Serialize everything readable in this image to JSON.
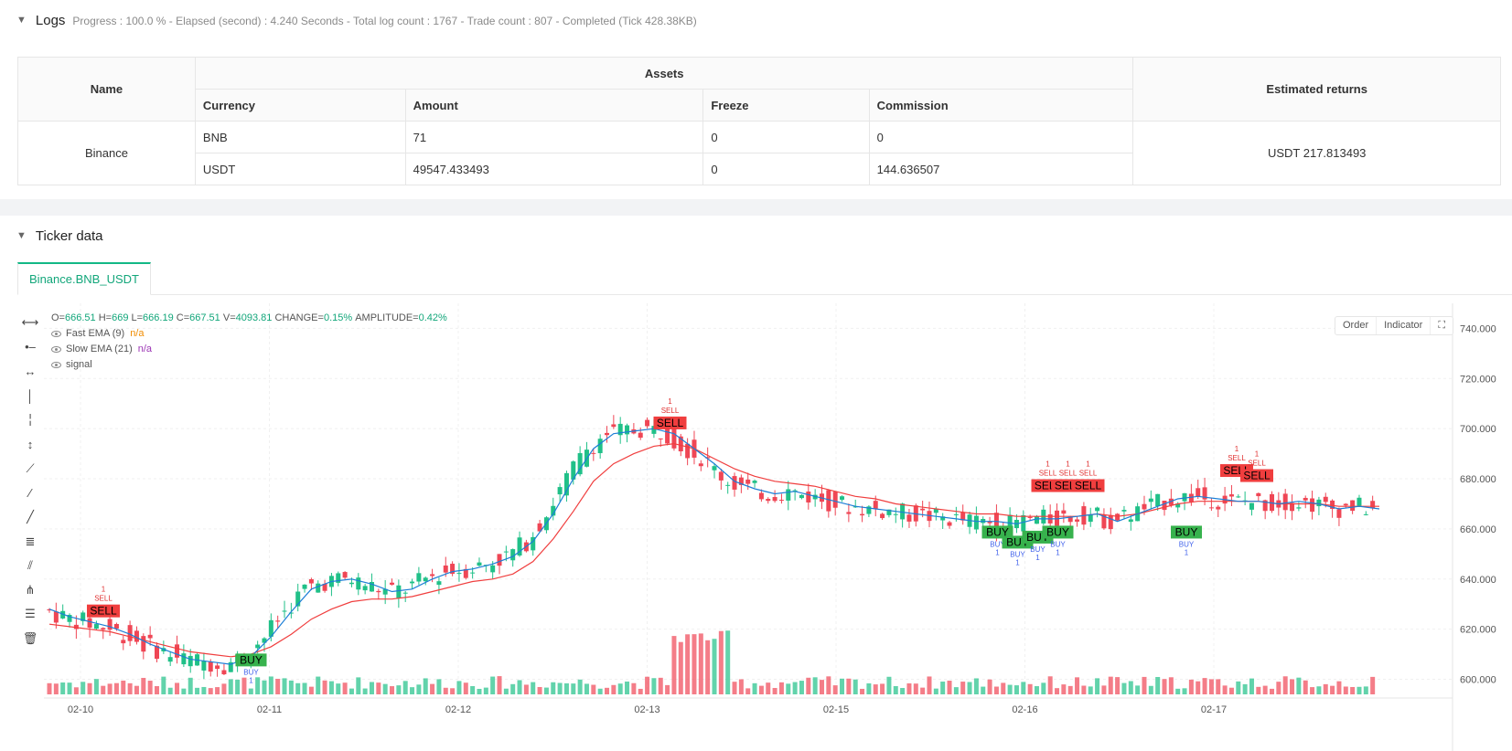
{
  "logs": {
    "title": "Logs",
    "status": "Progress : 100.0 % - Elapsed (second) : 4.240  Seconds - Total log count : 1767 - Trade count : 807 - Completed (Tick 428.38KB)",
    "table": {
      "h_name": "Name",
      "h_assets": "Assets",
      "h_returns": "Estimated returns",
      "h_currency": "Currency",
      "h_amount": "Amount",
      "h_freeze": "Freeze",
      "h_commission": "Commission",
      "exchange": "Binance",
      "rows": [
        {
          "currency": "BNB",
          "amount": "71",
          "freeze": "0",
          "commission": "0"
        },
        {
          "currency": "USDT",
          "amount": "49547.433493",
          "freeze": "0",
          "commission": "144.636507"
        }
      ],
      "returns": "USDT 217.813493"
    }
  },
  "ticker": {
    "title": "Ticker data",
    "tab": "Binance.BNB_USDT",
    "buttons": {
      "order": "Order",
      "indicator": "Indicator"
    },
    "ohlc": {
      "o_label": "O=",
      "o": "666.51",
      "h_label": "H=",
      "h": "669",
      "l_label": "L=",
      "l": "666.19",
      "c_label": "C=",
      "c": "667.51",
      "v_label": "V=",
      "v": "4093.81",
      "change_label": "CHANGE=",
      "change": "0.15%",
      "amp_label": "AMPLITUDE=",
      "amp": "0.42%"
    },
    "indicators": [
      {
        "name": "Fast EMA (9)",
        "value": "n/a"
      },
      {
        "name": "Slow EMA (21)",
        "value": "n/a"
      },
      {
        "name": "signal",
        "value": ""
      }
    ],
    "tools": [
      "h-line-icon",
      "h-ray-icon",
      "h-segment-icon",
      "v-line-icon",
      "v-ray-icon",
      "v-segment-icon",
      "trend-line-icon",
      "trend-ray-icon",
      "trend-segment-icon",
      "price-range-icon",
      "parallel-channel-icon",
      "pitchfork-icon",
      "fib-icon",
      "trash-icon"
    ]
  },
  "chart_data": {
    "type": "candlestick",
    "y_ticks": [
      "600.000",
      "620.000",
      "640.000",
      "660.000",
      "680.000",
      "700.000",
      "720.000",
      "740.000"
    ],
    "ylim": [
      594,
      750
    ],
    "x_labels": [
      "02-10",
      "02-11",
      "02-12",
      "02-13",
      "02-15",
      "02-16",
      "02-17"
    ],
    "fast_ema_color": "#1c7ed6",
    "slow_ema_color": "#f03e3e",
    "up_color": "#20c088",
    "down_color": "#ef4655",
    "fast_ema": [
      628,
      625,
      623,
      621,
      618,
      614,
      611,
      608,
      607,
      606,
      609,
      617,
      627,
      636,
      639,
      640,
      638,
      635,
      636,
      640,
      643,
      644,
      646,
      649,
      655,
      666,
      680,
      692,
      698,
      699,
      700,
      698,
      692,
      686,
      679,
      676,
      674,
      675,
      673,
      671,
      669,
      668,
      667,
      666,
      665,
      664,
      663,
      663,
      662,
      664,
      664,
      665,
      666,
      663,
      666,
      669,
      672,
      673,
      672,
      671,
      671,
      670,
      671,
      670,
      668,
      669,
      668
    ],
    "slow_ema": [
      622,
      621,
      620,
      619,
      617,
      615,
      613,
      611,
      610,
      609,
      610,
      613,
      618,
      624,
      628,
      631,
      632,
      632,
      633,
      635,
      637,
      639,
      640,
      642,
      647,
      656,
      667,
      679,
      686,
      690,
      693,
      694,
      692,
      688,
      684,
      681,
      679,
      678,
      677,
      675,
      673,
      672,
      670,
      669,
      668,
      667,
      666,
      666,
      665,
      665,
      665,
      665,
      666,
      665,
      666,
      668,
      670,
      671,
      671,
      671,
      671,
      670,
      670,
      670,
      669,
      669,
      669
    ],
    "signals": [
      {
        "type": "SELL",
        "date": "02-10",
        "price": 624,
        "label": "SELL",
        "qty": "1"
      },
      {
        "type": "BUY",
        "date": "02-11",
        "price": 611,
        "label": "BUY",
        "qty": "1"
      },
      {
        "type": "SELL",
        "date": "02-13",
        "price": 699,
        "label": "SELL",
        "qty": "1"
      },
      {
        "type": "SELL",
        "date": "02-16",
        "price": 674,
        "label": "SELL",
        "qty": "1"
      },
      {
        "type": "SELL",
        "date": "02-16",
        "price": 674,
        "label": "SELL",
        "qty": "1"
      },
      {
        "type": "SELL",
        "date": "02-16",
        "price": 674,
        "label": "SELL",
        "qty": "1"
      },
      {
        "type": "BUY",
        "date": "02-16",
        "price": 662,
        "label": "BUY",
        "qty": "1"
      },
      {
        "type": "BUY",
        "date": "02-16",
        "price": 658,
        "label": "BUY",
        "qty": "1"
      },
      {
        "type": "BUY",
        "date": "02-16",
        "price": 660,
        "label": "BUY",
        "qty": "1"
      },
      {
        "type": "BUY",
        "date": "02-16",
        "price": 662,
        "label": "BUY",
        "qty": "1"
      },
      {
        "type": "SELL",
        "date": "02-17",
        "price": 680,
        "label": "SELL",
        "qty": "1"
      },
      {
        "type": "BUY",
        "date": "02-17",
        "price": 662,
        "label": "BUY",
        "qty": "1"
      },
      {
        "type": "SELL",
        "date": "02-17",
        "price": 678,
        "label": "SELL",
        "qty": "1"
      }
    ]
  }
}
